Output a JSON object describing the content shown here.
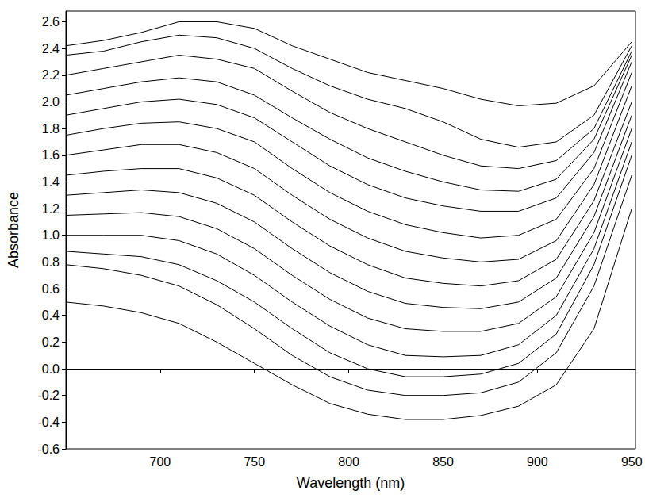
{
  "chart_data": {
    "type": "line",
    "x_label": "Wavelength (nm)",
    "y_label": "Absorbance",
    "x": [
      650,
      670,
      690,
      710,
      730,
      750,
      770,
      790,
      810,
      830,
      850,
      870,
      890,
      910,
      930,
      950
    ],
    "series": [
      {
        "color": "#000000",
        "values": [
          2.42,
          2.46,
          2.52,
          2.6,
          2.6,
          2.55,
          2.42,
          2.32,
          2.22,
          2.16,
          2.1,
          2.02,
          1.97,
          1.99,
          2.12,
          2.45
        ]
      },
      {
        "color": "#000000",
        "values": [
          2.35,
          2.38,
          2.45,
          2.5,
          2.48,
          2.4,
          2.25,
          2.12,
          2.02,
          1.95,
          1.85,
          1.72,
          1.66,
          1.7,
          1.9,
          2.42
        ]
      },
      {
        "color": "#000000",
        "values": [
          2.2,
          2.25,
          2.3,
          2.35,
          2.32,
          2.25,
          2.08,
          1.92,
          1.8,
          1.7,
          1.6,
          1.52,
          1.5,
          1.56,
          1.8,
          2.38
        ]
      },
      {
        "color": "#000000",
        "values": [
          2.05,
          2.1,
          2.15,
          2.18,
          2.15,
          2.05,
          1.88,
          1.72,
          1.58,
          1.48,
          1.4,
          1.34,
          1.33,
          1.42,
          1.72,
          2.35
        ]
      },
      {
        "color": "#000000",
        "values": [
          1.9,
          1.95,
          2.0,
          2.02,
          1.98,
          1.88,
          1.7,
          1.52,
          1.38,
          1.28,
          1.22,
          1.18,
          1.18,
          1.28,
          1.62,
          2.3
        ]
      },
      {
        "color": "#000000",
        "values": [
          1.75,
          1.8,
          1.84,
          1.85,
          1.8,
          1.7,
          1.5,
          1.32,
          1.18,
          1.08,
          1.02,
          0.98,
          1.0,
          1.12,
          1.5,
          2.22
        ]
      },
      {
        "color": "#000000",
        "values": [
          1.6,
          1.64,
          1.68,
          1.68,
          1.62,
          1.5,
          1.3,
          1.12,
          0.98,
          0.88,
          0.83,
          0.8,
          0.82,
          0.96,
          1.38,
          2.12
        ]
      },
      {
        "color": "#000000",
        "values": [
          1.45,
          1.48,
          1.5,
          1.5,
          1.43,
          1.3,
          1.1,
          0.92,
          0.78,
          0.68,
          0.64,
          0.62,
          0.66,
          0.82,
          1.26,
          2.0
        ]
      },
      {
        "color": "#000000",
        "values": [
          1.3,
          1.32,
          1.34,
          1.32,
          1.24,
          1.1,
          0.9,
          0.72,
          0.58,
          0.49,
          0.46,
          0.45,
          0.5,
          0.68,
          1.14,
          1.9
        ]
      },
      {
        "color": "#000000",
        "values": [
          1.15,
          1.16,
          1.17,
          1.14,
          1.05,
          0.9,
          0.7,
          0.52,
          0.38,
          0.3,
          0.28,
          0.28,
          0.34,
          0.54,
          1.02,
          1.8
        ]
      },
      {
        "color": "#000000",
        "values": [
          1.0,
          1.0,
          1.0,
          0.96,
          0.86,
          0.7,
          0.5,
          0.32,
          0.18,
          0.1,
          0.09,
          0.1,
          0.18,
          0.4,
          0.9,
          1.7
        ]
      },
      {
        "color": "#000000",
        "values": [
          0.88,
          0.86,
          0.84,
          0.78,
          0.66,
          0.5,
          0.3,
          0.12,
          0.0,
          -0.06,
          -0.06,
          -0.04,
          0.04,
          0.26,
          0.78,
          1.6
        ]
      },
      {
        "color": "#000000",
        "values": [
          0.78,
          0.75,
          0.7,
          0.62,
          0.48,
          0.3,
          0.1,
          -0.06,
          -0.16,
          -0.2,
          -0.2,
          -0.18,
          -0.1,
          0.12,
          0.62,
          1.45
        ]
      },
      {
        "color": "#000000",
        "values": [
          0.5,
          0.47,
          0.42,
          0.34,
          0.2,
          0.04,
          -0.12,
          -0.26,
          -0.34,
          -0.38,
          -0.38,
          -0.35,
          -0.28,
          -0.12,
          0.3,
          1.2
        ]
      }
    ],
    "xlim": [
      650,
      952
    ],
    "xticks": [
      700,
      750,
      800,
      850,
      900,
      950
    ],
    "ylim": [
      -0.6,
      2.68
    ],
    "yticks": [
      -0.6,
      -0.4,
      -0.2,
      {
        "value": 0,
        "label": "0.0"
      },
      0.2,
      0.4,
      0.6,
      0.8,
      {
        "value": 1,
        "label": "1.0"
      },
      1.2,
      1.4,
      1.6,
      1.8,
      {
        "value": 2,
        "label": "2.0"
      },
      2.2,
      2.4,
      2.6
    ],
    "grid": false
  }
}
